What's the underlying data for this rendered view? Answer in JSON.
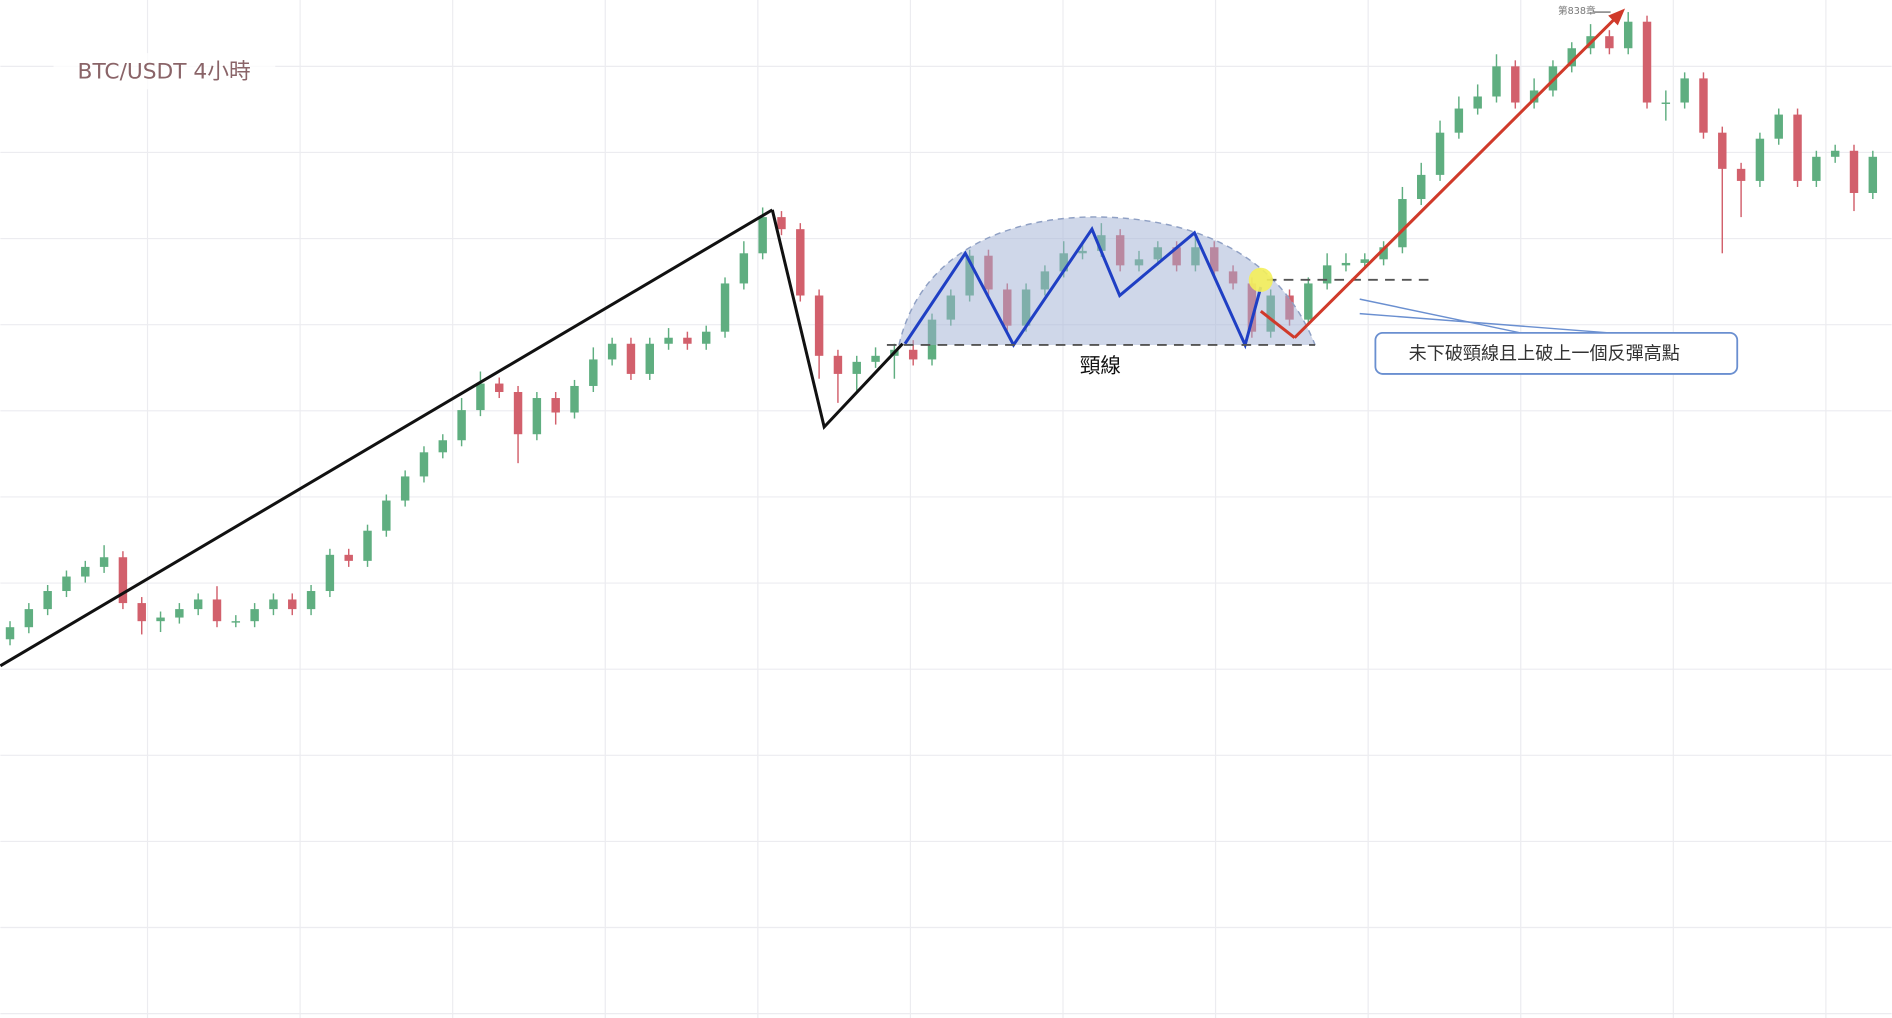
{
  "chart_data": {
    "type": "candlestick",
    "title": "BTC/USDT 4小時",
    "neckline_label": "頸線",
    "callout": "未下破頸線且上破上一個反彈高點",
    "watermark": "第838章",
    "ylim": [
      0,
      844
    ],
    "grid": true,
    "up_color": "#5fae80",
    "down_color": "#d2606c",
    "open": [
      314,
      324,
      339,
      354,
      366,
      374,
      382,
      344,
      329,
      332,
      339,
      347,
      329,
      329,
      339,
      347,
      339,
      354,
      384,
      379,
      404,
      429,
      449,
      469,
      479,
      504,
      526,
      519,
      484,
      514,
      502,
      524,
      546,
      559,
      534,
      559,
      564,
      559,
      569,
      609,
      634,
      664,
      654,
      599,
      549,
      534,
      544,
      549,
      554,
      546,
      579,
      599,
      632,
      604,
      574,
      604,
      619,
      634,
      636,
      649,
      624,
      629,
      639,
      624,
      639,
      619,
      609,
      569,
      599,
      579,
      609,
      624,
      626,
      629,
      639,
      679,
      699,
      734,
      754,
      764,
      789,
      759,
      769,
      789,
      804,
      814,
      804,
      826,
      759,
      759,
      779,
      734,
      704,
      694,
      729,
      749,
      694,
      714,
      719,
      684
    ],
    "high": [
      329,
      344,
      359,
      371,
      379,
      392,
      387,
      349,
      337,
      344,
      352,
      358,
      334,
      344,
      352,
      352,
      359,
      389,
      389,
      409,
      434,
      454,
      474,
      484,
      514,
      536,
      531,
      524,
      519,
      519,
      529,
      556,
      564,
      564,
      564,
      572,
      569,
      574,
      614,
      644,
      672,
      669,
      659,
      604,
      554,
      549,
      556,
      559,
      562,
      584,
      604,
      637,
      637,
      609,
      609,
      624,
      644,
      644,
      659,
      654,
      636,
      644,
      644,
      649,
      644,
      624,
      614,
      604,
      604,
      614,
      634,
      634,
      634,
      644,
      689,
      709,
      744,
      764,
      774,
      799,
      794,
      779,
      794,
      809,
      824,
      819,
      834,
      831,
      769,
      784,
      784,
      739,
      709,
      734,
      754,
      754,
      719,
      724,
      724,
      719
    ],
    "low": [
      309,
      319,
      334,
      349,
      361,
      369,
      339,
      318,
      320,
      327,
      334,
      324,
      324,
      324,
      334,
      334,
      334,
      349,
      374,
      374,
      399,
      424,
      444,
      464,
      474,
      499,
      514,
      460,
      479,
      492,
      497,
      519,
      541,
      529,
      529,
      554,
      554,
      554,
      564,
      604,
      629,
      649,
      594,
      530,
      510,
      520,
      539,
      530,
      541,
      541,
      574,
      594,
      599,
      569,
      569,
      599,
      614,
      629,
      631,
      619,
      619,
      624,
      619,
      619,
      614,
      604,
      564,
      564,
      574,
      574,
      604,
      619,
      621,
      624,
      634,
      674,
      694,
      729,
      749,
      759,
      754,
      754,
      764,
      784,
      799,
      799,
      799,
      754,
      744,
      754,
      729,
      634,
      664,
      689,
      724,
      689,
      689,
      709,
      669,
      679
    ],
    "close": [
      324,
      339,
      354,
      366,
      374,
      382,
      344,
      329,
      332,
      339,
      347,
      329,
      329,
      339,
      347,
      339,
      354,
      384,
      379,
      404,
      429,
      449,
      469,
      479,
      504,
      526,
      519,
      484,
      514,
      502,
      524,
      546,
      559,
      534,
      559,
      564,
      559,
      569,
      609,
      634,
      664,
      654,
      599,
      549,
      534,
      544,
      549,
      554,
      546,
      579,
      599,
      632,
      604,
      574,
      604,
      619,
      634,
      636,
      649,
      624,
      629,
      639,
      624,
      639,
      619,
      609,
      569,
      599,
      579,
      609,
      624,
      626,
      629,
      639,
      679,
      699,
      734,
      754,
      764,
      789,
      759,
      769,
      789,
      804,
      814,
      804,
      826,
      759,
      759,
      779,
      734,
      704,
      694,
      729,
      749,
      694,
      714,
      719,
      684,
      714
    ]
  }
}
